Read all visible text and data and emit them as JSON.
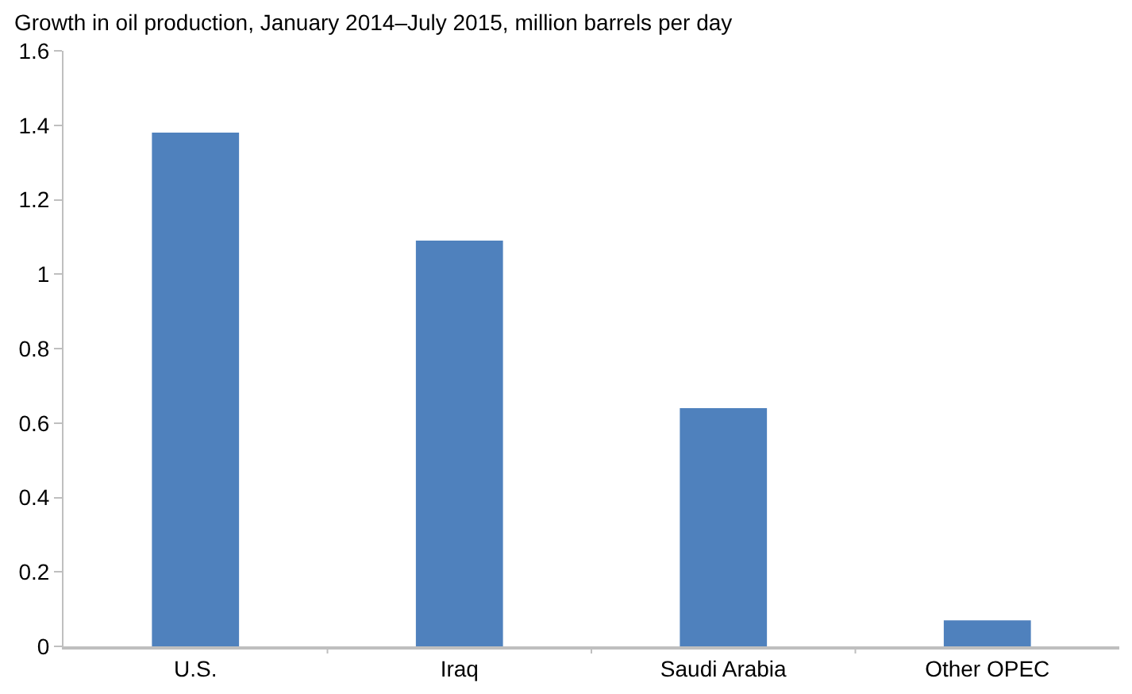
{
  "chart_data": {
    "type": "bar",
    "subtitle": "Growth in oil production, January 2014–July 2015, million barrels per day",
    "categories": [
      "U.S.",
      "Iraq",
      "Saudi Arabia",
      "Other OPEC"
    ],
    "values": [
      1.38,
      1.09,
      0.64,
      0.07
    ],
    "color": "#4f81bd",
    "ylim": [
      0,
      1.6
    ],
    "yticks": [
      0,
      0.2,
      0.4,
      0.6,
      0.8,
      1,
      1.2,
      1.4,
      1.6
    ]
  }
}
